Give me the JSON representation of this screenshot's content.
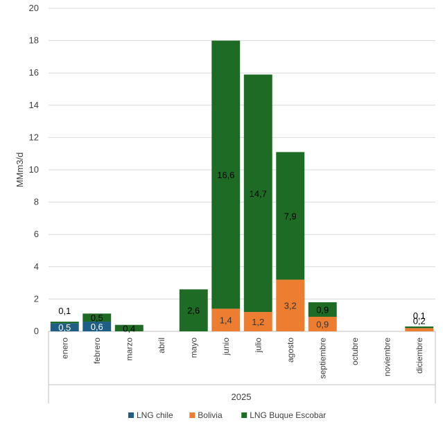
{
  "chart_data": {
    "type": "bar",
    "stacked": true,
    "categories": [
      "enero",
      "febrero",
      "marzo",
      "abril",
      "mayo",
      "junio",
      "julio",
      "agosto",
      "septiembre",
      "octubre",
      "noviembre",
      "diciembre"
    ],
    "group_label": "2025",
    "ylabel": "MMm3/d",
    "ylim": [
      0,
      20
    ],
    "yticks": [
      0,
      2,
      4,
      6,
      8,
      10,
      12,
      14,
      16,
      18,
      20
    ],
    "grid": true,
    "legend_position": "bottom",
    "series": [
      {
        "name": "LNG chile",
        "color": "#1f5f86",
        "values": [
          0.5,
          0.6,
          0,
          0,
          0,
          0,
          0,
          0,
          0,
          0,
          0,
          0
        ],
        "labels": [
          "0,5",
          "0,6",
          "",
          "",
          "",
          "",
          "",
          "",
          "",
          "",
          "",
          ""
        ],
        "label_color": "#ffffff"
      },
      {
        "name": "Bolivia",
        "color": "#ed7d31",
        "values": [
          0,
          0,
          0,
          0,
          0,
          1.4,
          1.2,
          3.2,
          0.9,
          0,
          0,
          0.2
        ],
        "labels": [
          "",
          "",
          "",
          "",
          "",
          "1,4",
          "1,2",
          "3,2",
          "0,9",
          "",
          "",
          "0,2"
        ],
        "label_color": "#333333"
      },
      {
        "name": "LNG Buque Escobar",
        "color": "#1e6b25",
        "values": [
          0.1,
          0.5,
          0.4,
          0,
          2.6,
          16.6,
          14.7,
          7.9,
          0.9,
          0,
          0,
          0.1
        ],
        "labels": [
          "0,1",
          "0,5",
          "0,4",
          "",
          "2,6",
          "16,6",
          "14,7",
          "7,9",
          "0,9",
          "",
          "",
          "0,1"
        ],
        "label_color": "#000000"
      }
    ]
  }
}
